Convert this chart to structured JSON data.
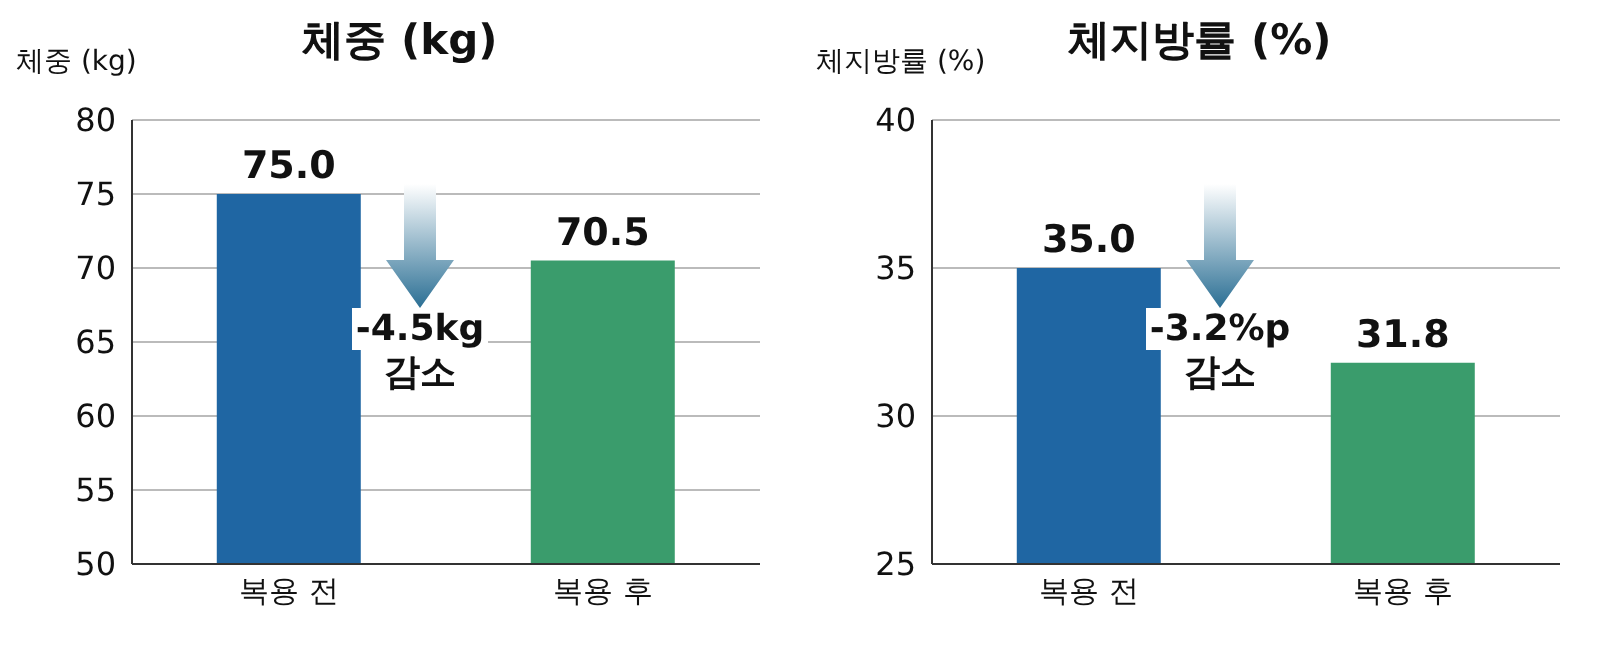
{
  "chart_data": [
    {
      "type": "bar",
      "title": "체중 (kg)",
      "ylabel": "체중 (kg)",
      "categories": [
        "복용 전",
        "복용 후"
      ],
      "values": [
        75.0,
        70.5
      ],
      "colors": [
        "#1f66a3",
        "#3a9c6c"
      ],
      "value_labels": [
        "75.0",
        "70.5"
      ],
      "ylim": [
        50,
        80
      ],
      "yticks": [
        50,
        55,
        60,
        65,
        70,
        75,
        80
      ],
      "grid": "y",
      "annotations": [
        "-4.5kg 감소"
      ]
    },
    {
      "type": "bar",
      "title": "체지방률 (%)",
      "ylabel": "체지방률 (%)",
      "categories": [
        "복용 전",
        "복용 후"
      ],
      "values": [
        35.0,
        31.8
      ],
      "colors": [
        "#1f66a3",
        "#3a9c6c"
      ],
      "value_labels": [
        "35.0",
        "31.8"
      ],
      "ylim": [
        25,
        40
      ],
      "yticks": [
        25,
        30,
        35,
        40
      ],
      "grid": "y",
      "annotations": [
        "-3.2%p 감소"
      ]
    }
  ]
}
